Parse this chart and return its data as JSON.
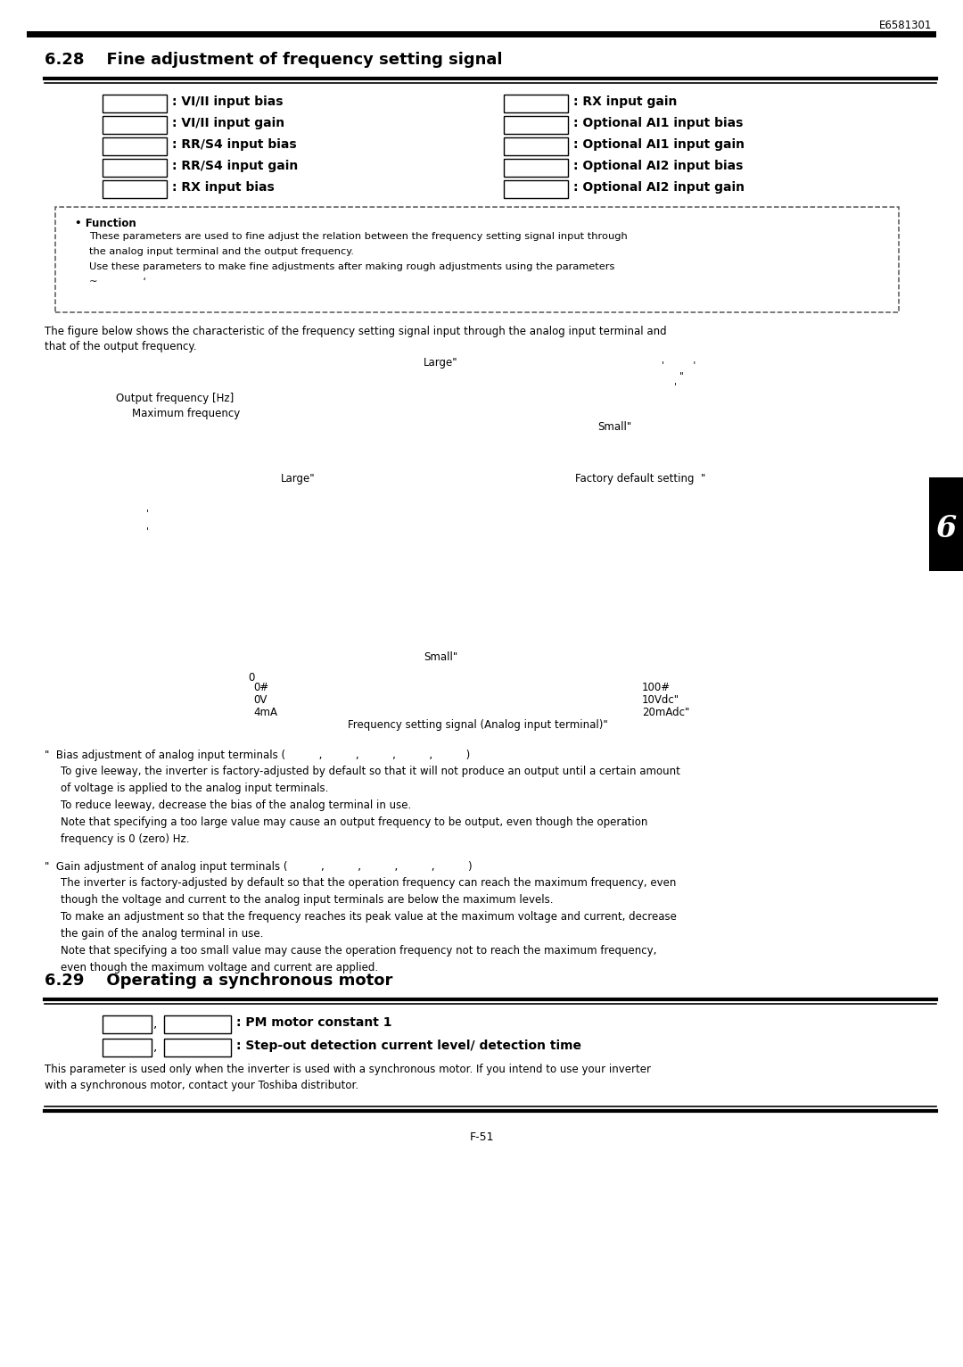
{
  "page_id": "E6581301",
  "page_footer": "F-51",
  "section_628_title": "6.28    Fine adjustment of frequency setting signal",
  "section_629_title": "6.29    Operating a synchronous motor",
  "left_params": [
    ": VI/II input bias",
    ": VI/II input gain",
    ": RR/S4 input bias",
    ": RR/S4 input gain",
    ": RX input bias"
  ],
  "right_params": [
    ": RX input gain",
    ": Optional AI1 input bias",
    ": Optional AI1 input gain",
    ": Optional AI2 input bias",
    ": Optional AI2 input gain"
  ],
  "function_box_title": "• Function",
  "function_text_lines": [
    "These parameters are used to fine adjust the relation between the frequency setting signal input through",
    "the analog input terminal and the output frequency.",
    "Use these parameters to make fine adjustments after making rough adjustments using the parameters",
    "~              ‘"
  ],
  "fig_desc_line1": "The figure below shows the characteristic of the frequency setting signal input through the analog input terminal and",
  "fig_desc_line2": "that of the output frequency.",
  "bias_note_title": "\"  Bias adjustment of analog input terminals (          ,          ,          ,          ,          )",
  "bias_note_lines": [
    "To give leeway, the inverter is factory-adjusted by default so that it will not produce an output until a certain amount",
    "of voltage is applied to the analog input terminals.",
    "To reduce leeway, decrease the bias of the analog terminal in use.",
    "Note that specifying a too large value may cause an output frequency to be output, even though the operation",
    "frequency is 0 (zero) Hz."
  ],
  "gain_note_title": "\"  Gain adjustment of analog input terminals (          ,          ,          ,          ,          )",
  "gain_note_lines": [
    "The inverter is factory-adjusted by default so that the operation frequency can reach the maximum frequency, even",
    "though the voltage and current to the analog input terminals are below the maximum levels.",
    "To make an adjustment so that the frequency reaches its peak value at the maximum voltage and current, decrease",
    "the gain of the analog terminal in use.",
    "Note that specifying a too small value may cause the operation frequency not to reach the maximum frequency,",
    "even though the maximum voltage and current are applied."
  ],
  "section_629_desc_line1": "This parameter is used only when the inverter is used with a synchronous motor. If you intend to use your inverter",
  "section_629_desc_line2": "with a synchronous motor, contact your Toshiba distributor.",
  "tab_number": "6",
  "bg_color": "#ffffff"
}
